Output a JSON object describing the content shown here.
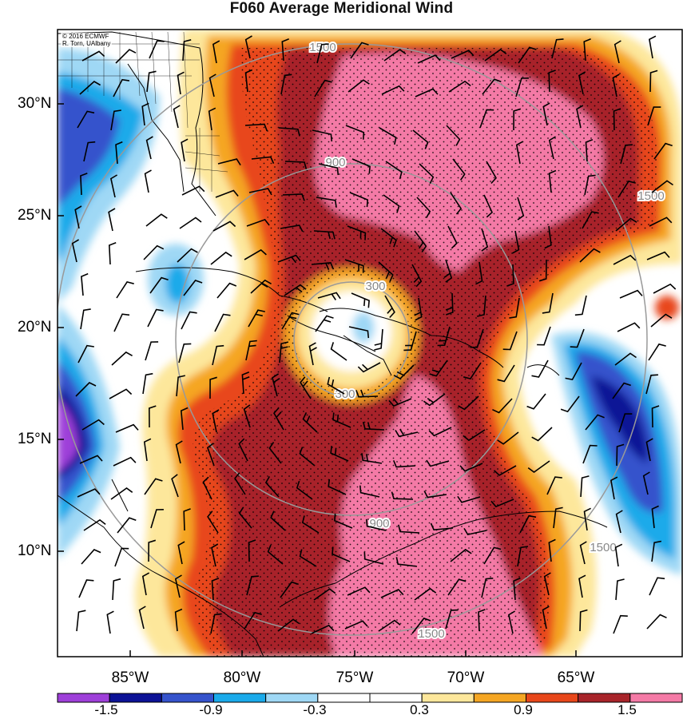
{
  "title": "F060 Average Meridional Wind",
  "credit": [
    "© 2016 ECMWF",
    "R. Torn, UAlbany"
  ],
  "map": {
    "lat_labels": [
      "30°N",
      "25°N",
      "20°N",
      "15°N",
      "10°N"
    ],
    "lon_labels": [
      "85°W",
      "80°W",
      "75°W",
      "70°W",
      "65°W"
    ],
    "ring_labels": [
      "300",
      "300",
      "900",
      "900",
      "1500",
      "1500",
      "1500",
      "1500"
    ],
    "ring_radii_km": [
      300,
      900,
      1500
    ]
  },
  "colorbar": {
    "colors": [
      "#9e3fd9",
      "#0c1296",
      "#3553cc",
      "#1aaaea",
      "#9fd8f5",
      "#ffffff",
      "#ffffff",
      "#fde79b",
      "#f5a623",
      "#e8471a",
      "#a8242a",
      "#f47aa6"
    ],
    "labels": [
      "-1.5",
      "-0.9",
      "-0.3",
      "0.3",
      "0.9",
      "1.5"
    ]
  }
}
